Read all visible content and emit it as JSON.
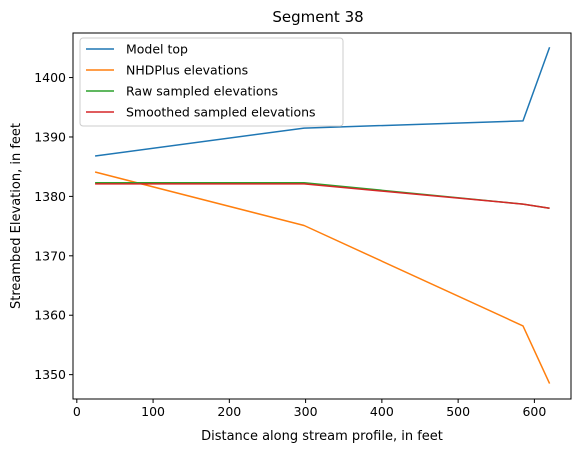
{
  "chart_data": {
    "type": "line",
    "title": "Segment 38",
    "xlabel": "Distance along stream profile, in feet",
    "ylabel": "Streambed Elevation, in feet",
    "xlim": [
      -5,
      648
    ],
    "ylim": [
      1345.9,
      1407.5
    ],
    "xticks": [
      0,
      100,
      200,
      300,
      400,
      500,
      600
    ],
    "yticks": [
      1350,
      1360,
      1370,
      1380,
      1390,
      1400
    ],
    "grid": false,
    "legend_position": "upper-left",
    "series": [
      {
        "name": "Model top",
        "color": "#1f77b4",
        "x": [
          24,
          298,
          585,
          620
        ],
        "y": [
          1386.8,
          1391.5,
          1392.7,
          1405.1
        ]
      },
      {
        "name": "NHDPlus elevations",
        "color": "#ff7f0e",
        "x": [
          24,
          298,
          585,
          620
        ],
        "y": [
          1384.1,
          1375.1,
          1358.2,
          1348.5
        ]
      },
      {
        "name": "Raw sampled elevations",
        "color": "#2ca02c",
        "x": [
          24,
          298,
          585,
          620
        ],
        "y": [
          1382.3,
          1382.3,
          1378.7,
          1378.0
        ]
      },
      {
        "name": "Smoothed sampled elevations",
        "color": "#d62728",
        "x": [
          24,
          298,
          585,
          620
        ],
        "y": [
          1382.1,
          1382.1,
          1378.7,
          1378.0
        ]
      }
    ]
  }
}
